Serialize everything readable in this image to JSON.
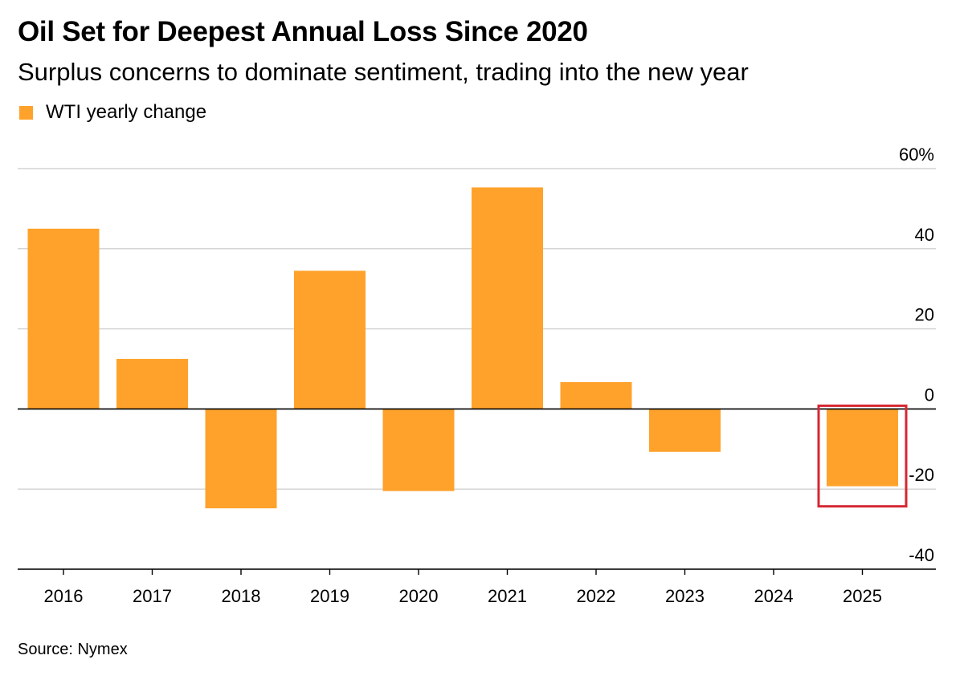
{
  "colors": {
    "bar": "#ffa22b",
    "highlight": "#d62732",
    "grid": "#d4d4d4",
    "axis": "#000000"
  },
  "chart_data": {
    "type": "bar",
    "title": "Oil Set for Deepest Annual Loss Since 2020",
    "subtitle": "Surplus concerns to dominate sentiment, trading into the new year",
    "legend": [
      {
        "name": "WTI yearly change",
        "color": "#ffa22b"
      }
    ],
    "legend_placement": "top-left",
    "categories": [
      "2016",
      "2017",
      "2018",
      "2019",
      "2020",
      "2021",
      "2022",
      "2023",
      "2024",
      "2025"
    ],
    "series": [
      {
        "name": "WTI yearly change",
        "values": [
          45,
          12.5,
          -24.8,
          34.5,
          -20.5,
          55.3,
          6.7,
          -10.7,
          0.1,
          -19.3
        ]
      }
    ],
    "ylim": [
      -40,
      60
    ],
    "yticks": [
      {
        "value": 60,
        "label": "60%"
      },
      {
        "value": 40,
        "label": "40"
      },
      {
        "value": 20,
        "label": "20"
      },
      {
        "value": 0,
        "label": "0"
      },
      {
        "value": -20,
        "label": "-20"
      },
      {
        "value": -40,
        "label": "-40"
      }
    ],
    "y_axis_side": "right",
    "grid": true,
    "highlighted_category": "2025",
    "source": "Source: Nymex"
  }
}
